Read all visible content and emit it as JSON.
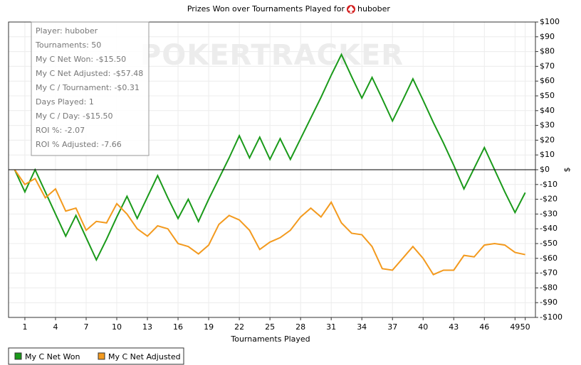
{
  "chart_data": {
    "type": "line",
    "title": "Prizes Won over Tournaments Played for",
    "player": "hubober",
    "watermark": "POKERTRACKER",
    "x_label": "Tournaments Played",
    "y_label": "$",
    "info_box": [
      "Player: hubober",
      "Tournaments: 50",
      "My C Net Won: -$15.50",
      "My C Net Adjusted: -$57.48",
      "My C / Tournament: -$0.31",
      "Days Played: 1",
      "My C / Day: -$15.50",
      "ROI %: -2.07",
      "ROI % Adjusted: -7.66"
    ],
    "x": [
      0,
      1,
      2,
      3,
      4,
      5,
      6,
      7,
      8,
      9,
      10,
      11,
      12,
      13,
      14,
      15,
      16,
      17,
      18,
      19,
      20,
      21,
      22,
      23,
      24,
      25,
      26,
      27,
      28,
      29,
      30,
      31,
      32,
      33,
      34,
      35,
      36,
      37,
      38,
      39,
      40,
      41,
      42,
      43,
      44,
      45,
      46,
      47,
      48,
      49,
      50
    ],
    "series": [
      {
        "name": "My C Net Won",
        "color": "#1a9a1a",
        "values": [
          0,
          -15,
          0,
          -15,
          -30,
          -45,
          -31,
          -46,
          -61,
          -47,
          -32,
          -18,
          -33,
          -18.5,
          -4,
          -19,
          -33,
          -20,
          -35,
          -20,
          -6,
          8,
          23,
          8,
          22,
          7,
          21,
          7,
          21,
          35,
          49,
          64,
          78,
          63,
          48.5,
          62.5,
          48,
          33,
          47,
          61.5,
          47,
          32,
          18,
          3,
          -13,
          1,
          15,
          0,
          -15,
          -29,
          -15.5
        ]
      },
      {
        "name": "My C Net Adjusted",
        "color": "#f39a1e",
        "values": [
          0,
          -10,
          -6,
          -19,
          -13,
          -28,
          -26,
          -41,
          -35,
          -36,
          -23,
          -30,
          -40,
          -45,
          -38,
          -40,
          -50,
          -52,
          -57,
          -51,
          -37,
          -31,
          -34,
          -41,
          -54,
          -49,
          -46,
          -41,
          -32,
          -26,
          -32,
          -22,
          -36,
          -43,
          -44,
          -52,
          -67,
          -68,
          -60,
          -52,
          -60,
          -71,
          -68,
          -68,
          -58,
          -59,
          -51,
          -50,
          -51,
          -56,
          -57.48
        ]
      }
    ],
    "xlim": [
      -0.6,
      51
    ],
    "xticks": [
      1,
      4,
      7,
      10,
      13,
      16,
      19,
      22,
      25,
      28,
      31,
      34,
      37,
      40,
      43,
      46,
      49,
      50
    ],
    "ylim": [
      -100,
      100
    ],
    "yticks": [
      {
        "value": -100,
        "label": "-$100"
      },
      {
        "value": -90,
        "label": "-$90"
      },
      {
        "value": -80,
        "label": "-$80"
      },
      {
        "value": -70,
        "label": "-$70"
      },
      {
        "value": -60,
        "label": "-$60"
      },
      {
        "value": -50,
        "label": "-$50"
      },
      {
        "value": -40,
        "label": "-$40"
      },
      {
        "value": -30,
        "label": "-$30"
      },
      {
        "value": -20,
        "label": "-$20"
      },
      {
        "value": -10,
        "label": "-$10"
      },
      {
        "value": 0,
        "label": "$0"
      },
      {
        "value": 10,
        "label": "$10"
      },
      {
        "value": 20,
        "label": "$20"
      },
      {
        "value": 30,
        "label": "$30"
      },
      {
        "value": 40,
        "label": "$40"
      },
      {
        "value": 50,
        "label": "$50"
      },
      {
        "value": 60,
        "label": "$60"
      },
      {
        "value": 70,
        "label": "$70"
      },
      {
        "value": 80,
        "label": "$80"
      },
      {
        "value": 90,
        "label": "$90"
      },
      {
        "value": 100,
        "label": "$100"
      }
    ],
    "grid": true
  }
}
